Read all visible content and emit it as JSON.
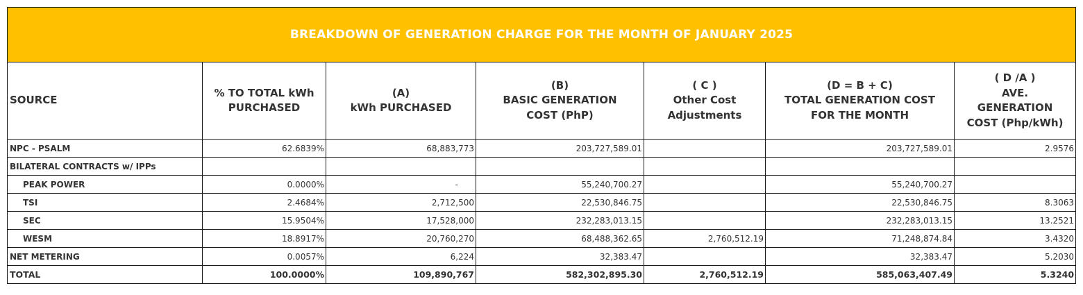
{
  "title": "BREAKDOWN OF GENERATION CHARGE FOR THE MONTH OF JANUARY 2025",
  "columns": {
    "source": "SOURCE",
    "pct": [
      "% TO TOTAL kWh",
      "PURCHASED"
    ],
    "kwh": [
      "(A)",
      "kWh PURCHASED"
    ],
    "basic": [
      "(B)",
      "BASIC GENERATION",
      "COST (PhP)"
    ],
    "other": [
      "( C )",
      "Other Cost",
      "Adjustments"
    ],
    "total": [
      "(D = B + C)",
      "TOTAL GENERATION COST",
      "FOR THE MONTH"
    ],
    "ave": [
      "( D /A )",
      "AVE.",
      "GENERATION",
      "COST (Php/kWh)"
    ]
  },
  "rows": [
    {
      "source": "NPC - PSALM",
      "pct": "62.6839%",
      "kwh": "68,883,773",
      "basic": "203,727,589.01",
      "other": "",
      "total": "203,727,589.01",
      "ave": "2.9576"
    },
    {
      "source": "BILATERAL CONTRACTS w/ IPPs",
      "pct": "",
      "kwh": "",
      "basic": "",
      "other": "",
      "total": "",
      "ave": ""
    },
    {
      "source": "PEAK POWER",
      "pct": "0.0000%",
      "kwh": "-",
      "basic": "55,240,700.27",
      "other": "",
      "total": "55,240,700.27",
      "ave": ""
    },
    {
      "source": "TSI",
      "pct": "2.4684%",
      "kwh": "2,712,500",
      "basic": "22,530,846.75",
      "other": "",
      "total": "22,530,846.75",
      "ave": "8.3063"
    },
    {
      "source": "SEC",
      "pct": "15.9504%",
      "kwh": "17,528,000",
      "basic": "232,283,013.15",
      "other": "",
      "total": "232,283,013.15",
      "ave": "13.2521"
    },
    {
      "source": "WESM",
      "pct": "18.8917%",
      "kwh": "20,760,270",
      "basic": "68,488,362.65",
      "other": "2,760,512.19",
      "total": "71,248,874.84",
      "ave": "3.4320"
    },
    {
      "source": "NET METERING",
      "pct": "0.0057%",
      "kwh": "6,224",
      "basic": "32,383.47",
      "other": "",
      "total": "32,383.47",
      "ave": "5.2030"
    },
    {
      "source": "TOTAL",
      "pct": "100.0000%",
      "kwh": "109,890,767",
      "basic": "582,302,895.30",
      "other": "2,760,512.19",
      "total": "585,063,407.49",
      "ave": "5.3240"
    }
  ]
}
